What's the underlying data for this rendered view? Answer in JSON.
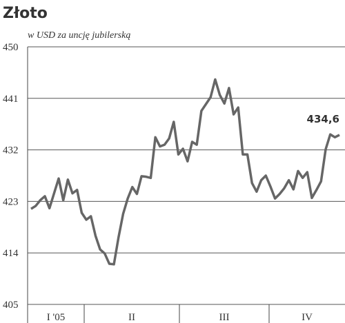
{
  "chart_data": {
    "type": "line",
    "title": "Złoto",
    "subtitle": "w USD za uncję jubilerską",
    "quarters": [
      "I '05",
      "II",
      "III",
      "IV"
    ],
    "ylim": [
      405,
      450
    ],
    "yticks": [
      405,
      414,
      423,
      432,
      441,
      450
    ],
    "grid": true,
    "series": [
      {
        "name": "Złoto",
        "color": "#666666",
        "values": [
          421.7,
          422.2,
          423.2,
          423.9,
          421.8,
          424.4,
          427.0,
          423.2,
          426.8,
          424.4,
          425.0,
          421.0,
          419.8,
          420.4,
          417.0,
          414.6,
          413.9,
          412.1,
          412.0,
          416.7,
          420.8,
          423.5,
          425.5,
          424.3,
          427.4,
          427.3,
          427.1,
          434.2,
          432.6,
          432.9,
          434.0,
          436.9,
          431.2,
          432.2,
          430.0,
          433.4,
          432.9,
          438.8,
          440.0,
          441.2,
          444.3,
          441.6,
          440.1,
          442.8,
          438.2,
          439.4,
          431.2,
          431.2,
          426.2,
          424.7,
          426.7,
          427.5,
          425.6,
          423.5,
          424.3,
          425.3,
          426.7,
          425.1,
          428.3,
          427.1,
          428.1,
          423.6,
          425.0,
          426.5,
          432.1,
          434.7,
          434.2,
          434.6
        ],
        "value_labels": [
          null,
          null,
          null,
          null,
          null,
          null,
          null,
          null,
          null,
          null,
          null,
          null,
          null,
          null,
          null,
          null,
          null,
          null,
          null,
          null,
          null,
          null,
          null,
          null,
          null,
          null,
          null,
          null,
          null,
          null,
          null,
          null,
          null,
          null,
          null,
          null,
          null,
          null,
          null,
          null,
          null,
          null,
          null,
          null,
          null,
          null,
          null,
          null,
          null,
          null,
          null,
          null,
          null,
          null,
          null,
          null,
          null,
          null,
          null,
          null,
          null,
          null,
          null,
          null,
          null,
          null,
          null,
          "434,6"
        ]
      }
    ]
  }
}
